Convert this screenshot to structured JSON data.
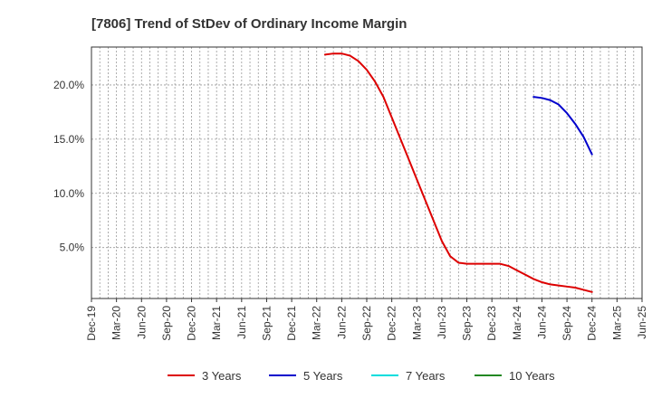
{
  "chart_data": {
    "type": "line",
    "title": "[7806]  Trend of StDev of Ordinary Income Margin",
    "x_labels": [
      "Dec-19",
      "Mar-20",
      "Jun-20",
      "Sep-20",
      "Dec-20",
      "Mar-21",
      "Jun-21",
      "Sep-21",
      "Dec-21",
      "Mar-22",
      "Jun-22",
      "Sep-22",
      "Dec-22",
      "Mar-23",
      "Jun-23",
      "Sep-23",
      "Dec-23",
      "Mar-24",
      "Jun-24",
      "Sep-24",
      "Dec-24",
      "Mar-25",
      "Jun-25"
    ],
    "y_ticks": [
      {
        "value": 5,
        "label": "5.0%"
      },
      {
        "value": 10,
        "label": "10.0%"
      },
      {
        "value": 15,
        "label": "15.0%"
      },
      {
        "value": 20,
        "label": "20.0%"
      }
    ],
    "ylim": [
      0.3,
      23.5
    ],
    "grid": true,
    "legend_position": "bottom",
    "series": [
      {
        "name": "3 Years",
        "color": "#dd0000",
        "points": [
          [
            "Apr-22",
            22.8
          ],
          [
            "May-22",
            22.9
          ],
          [
            "Jun-22",
            22.9
          ],
          [
            "Jul-22",
            22.7
          ],
          [
            "Aug-22",
            22.2
          ],
          [
            "Sep-22",
            21.4
          ],
          [
            "Oct-22",
            20.3
          ],
          [
            "Nov-22",
            18.9
          ],
          [
            "Dec-22",
            17.0
          ],
          [
            "Jan-23",
            15.1
          ],
          [
            "Feb-23",
            13.2
          ],
          [
            "Mar-23",
            11.3
          ],
          [
            "Apr-23",
            9.4
          ],
          [
            "May-23",
            7.5
          ],
          [
            "Jun-23",
            5.6
          ],
          [
            "Jul-23",
            4.2
          ],
          [
            "Aug-23",
            3.6
          ],
          [
            "Sep-23",
            3.5
          ],
          [
            "Oct-23",
            3.5
          ],
          [
            "Nov-23",
            3.5
          ],
          [
            "Dec-23",
            3.5
          ],
          [
            "Jan-24",
            3.5
          ],
          [
            "Feb-24",
            3.3
          ],
          [
            "Mar-24",
            2.9
          ],
          [
            "Apr-24",
            2.5
          ],
          [
            "May-24",
            2.1
          ],
          [
            "Jun-24",
            1.8
          ],
          [
            "Jul-24",
            1.6
          ],
          [
            "Aug-24",
            1.5
          ],
          [
            "Sep-24",
            1.4
          ],
          [
            "Oct-24",
            1.3
          ],
          [
            "Nov-24",
            1.1
          ],
          [
            "Dec-24",
            0.9
          ]
        ]
      },
      {
        "name": "5 Years",
        "color": "#0000cc",
        "points": [
          [
            "May-24",
            18.9
          ],
          [
            "Jun-24",
            18.8
          ],
          [
            "Jul-24",
            18.6
          ],
          [
            "Aug-24",
            18.2
          ],
          [
            "Sep-24",
            17.4
          ],
          [
            "Oct-24",
            16.4
          ],
          [
            "Nov-24",
            15.2
          ],
          [
            "Dec-24",
            13.6
          ]
        ]
      },
      {
        "name": "7 Years",
        "color": "#00dddd",
        "points": []
      },
      {
        "name": "10 Years",
        "color": "#228822",
        "points": []
      }
    ]
  }
}
